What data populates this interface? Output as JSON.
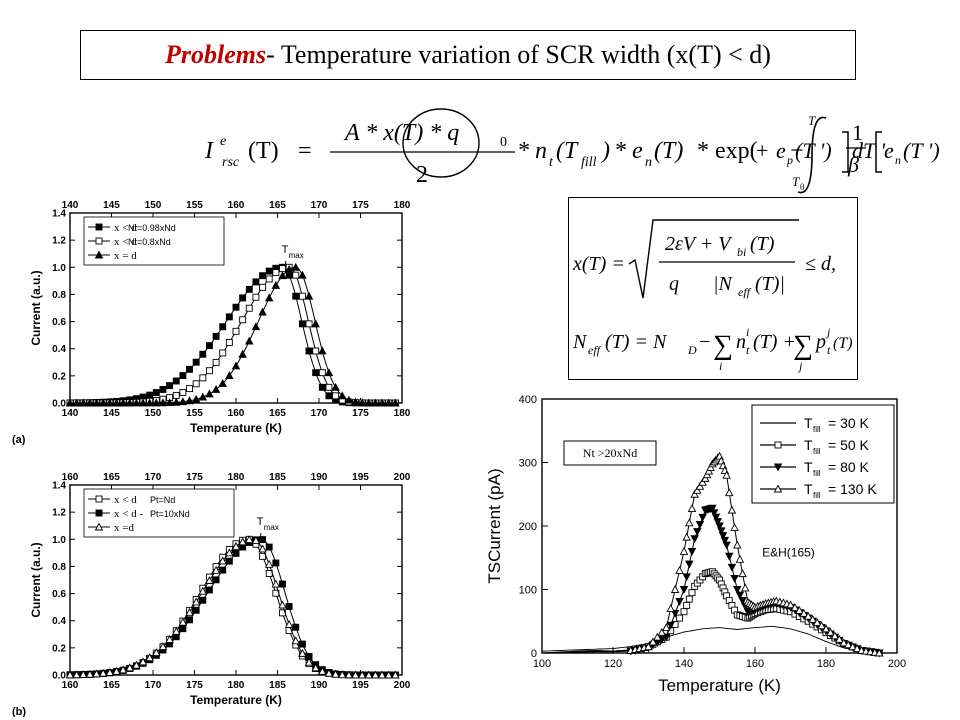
{
  "title": {
    "emphasis": "Problems",
    "rest": " - Temperature variation of SCR width (x(T) < d)"
  },
  "equation_main": {
    "lhs_I": "I",
    "lhs_sup": "e",
    "lhs_sub": "rsc",
    "lhs_arg": "(T)",
    "equals": "=",
    "numerator": "A * x(T) * q",
    "numerator_sub": "0",
    "denominator": "2",
    "mult1": "* n",
    "n_sub": "t",
    "n_arg_open": "(T",
    "n_arg_sub": "fill",
    "n_arg_close": ")",
    "mult2": "* e",
    "e_sub": "n",
    "e_arg": "(T)",
    "mult3": "* exp(",
    "minus": "−",
    "int_upper": "T",
    "int_lower": "T",
    "int_lower_sub": "0",
    "frac_num": "1",
    "frac_den": "β",
    "bracket_en": "e",
    "bracket_en_sub": "n",
    "bracket_en_arg": "(T ')",
    "plus": "+",
    "bracket_ep": "e",
    "bracket_ep_sub": "p",
    "bracket_ep_arg": "(T ')",
    "tail": "dT '"
  },
  "equation_box": {
    "line1_lhs": "x(T) =",
    "line1_num": "2εV + V",
    "line1_num_sub": "bi",
    "line1_num_arg": "(T)",
    "line1_den_left": "q",
    "line1_den_right": "|N",
    "line1_den_sub": "eff",
    "line1_den_arg": "(T)|",
    "line1_tail": "≤ d,",
    "line2_lhs": "N",
    "line2_lhs_sub": "eff",
    "line2_lhs_arg": "(T) = N",
    "line2_nd_sub": "D",
    "line2_minus": "−",
    "line2_sum1_term": "n",
    "line2_sum1_sup": "i",
    "line2_sum1_sub": "t",
    "line2_sum1_arg": "(T) +",
    "line2_sum_i": "i",
    "line2_sum2_term": "p",
    "line2_sum2_sup": "j",
    "line2_sum2_sub": "t",
    "line2_sum2_arg": "(T)",
    "line2_sum_j": "j"
  },
  "colors": {
    "title_emphasis": "#c00000",
    "line": "#000000"
  },
  "chart_data": [
    {
      "type": "line",
      "panel_label": "(a)",
      "title": "",
      "xlabel": "Temperature (K)",
      "ylabel": "Current (a.u.)",
      "xlim": [
        140,
        180
      ],
      "ylim": [
        0.0,
        1.4
      ],
      "xticks": [
        "140",
        "145",
        "150",
        "155",
        "160",
        "165",
        "170",
        "175",
        "180"
      ],
      "yticks": [
        "0.0",
        "0.2",
        "0.4",
        "0.6",
        "0.8",
        "1.0",
        "1.2",
        "1.4"
      ],
      "annotation": "T",
      "annotation_sub": "max",
      "legend_position": "top-left",
      "series": [
        {
          "name": "x < d",
          "note": "Nt=0.98xNd",
          "marker": "square-filled",
          "peak": 165.6,
          "wl": 9.0,
          "wr": 3.1
        },
        {
          "name": "x < d",
          "note": "Nt=0.8xNd",
          "marker": "square-open",
          "peak": 166.4,
          "wl": 7.6,
          "wr": 3.1
        },
        {
          "name": "x = d",
          "note": "",
          "marker": "triangle-filled",
          "peak": 167.2,
          "wl": 6.0,
          "wr": 3.1
        }
      ]
    },
    {
      "type": "line",
      "panel_label": "(b)",
      "title": "",
      "xlabel": "Temperature (K)",
      "ylabel": "Current (a.u.)",
      "xlim": [
        160,
        200
      ],
      "ylim": [
        0.0,
        1.4
      ],
      "xticks": [
        "160",
        "165",
        "170",
        "175",
        "180",
        "185",
        "190",
        "195",
        "200"
      ],
      "yticks": [
        "0.0",
        "0.2",
        "0.4",
        "0.6",
        "0.8",
        "1.0",
        "1.2",
        "1.4"
      ],
      "annotation": "T",
      "annotation_sub": "max",
      "legend_position": "top-left",
      "series": [
        {
          "name": "x < d",
          "note": "Pt=Nd",
          "marker": "square-open",
          "peak": 181.5,
          "wl": 7.8,
          "wr": 4.4
        },
        {
          "name": "x < d -",
          "note": "Pt=10xNd",
          "marker": "square-filled",
          "peak": 183.0,
          "wl": 8.6,
          "wr": 3.9
        },
        {
          "name": "x =d",
          "note": "",
          "marker": "triangle-open",
          "peak": 182.0,
          "wl": 8.2,
          "wr": 4.2
        }
      ]
    },
    {
      "type": "line",
      "title": "",
      "xlabel": "Temperature (K)",
      "ylabel": "TSCurrent (pA)",
      "xlim": [
        100,
        200
      ],
      "ylim": [
        0,
        400
      ],
      "xticks": [
        "100",
        "120",
        "140",
        "160",
        "180",
        "200"
      ],
      "yticks": [
        "0",
        "100",
        "200",
        "300",
        "400"
      ],
      "annotation": "E&H(165)",
      "inset_note": "Nt >20xNd",
      "legend_position": "top-right",
      "series": [
        {
          "name": "T",
          "name_sub": "fill",
          "name_value": "= 30 K",
          "marker": "none",
          "x": [
            100,
            105,
            110,
            115,
            120,
            125,
            130,
            135,
            140,
            145,
            150,
            155,
            160,
            165,
            170,
            175,
            180,
            185,
            190,
            195
          ],
          "y": [
            3,
            4,
            5,
            6,
            7,
            10,
            15,
            25,
            33,
            38,
            40,
            37,
            40,
            42,
            38,
            30,
            18,
            8,
            3,
            0
          ]
        },
        {
          "name": "T",
          "name_sub": "fill",
          "name_value": "= 50 K",
          "marker": "square-open",
          "x": [
            100,
            110,
            115,
            120,
            125,
            130,
            135,
            140,
            143,
            146,
            148,
            150,
            152,
            155,
            158,
            160,
            163,
            166,
            170,
            175,
            180,
            185,
            190,
            195
          ],
          "y": [
            0,
            3,
            4,
            3,
            5,
            10,
            25,
            65,
            105,
            125,
            128,
            115,
            90,
            60,
            55,
            62,
            68,
            70,
            65,
            50,
            32,
            15,
            4,
            0
          ]
        },
        {
          "name": "T",
          "name_sub": "fill",
          "name_value": "= 80 K",
          "marker": "triangle-down-filled",
          "x": [
            100,
            115,
            120,
            125,
            130,
            135,
            140,
            143,
            146,
            148,
            150,
            152,
            155,
            158,
            160,
            163,
            166,
            170,
            175,
            180,
            185,
            190,
            195
          ],
          "y": [
            0,
            2,
            2,
            3,
            8,
            25,
            100,
            180,
            225,
            228,
            200,
            170,
            100,
            65,
            68,
            75,
            78,
            72,
            55,
            35,
            15,
            4,
            0
          ]
        },
        {
          "name": "T",
          "name_sub": "fill",
          "name_value": "= 130 K",
          "marker": "triangle-open",
          "x": [
            100,
            115,
            120,
            125,
            130,
            135,
            140,
            143,
            146,
            148,
            150,
            152,
            155,
            158,
            160,
            163,
            166,
            170,
            175,
            180,
            185,
            190,
            195
          ],
          "y": [
            0,
            3,
            3,
            4,
            10,
            40,
            160,
            250,
            275,
            298,
            310,
            280,
            170,
            80,
            72,
            78,
            82,
            76,
            58,
            38,
            16,
            4,
            0
          ]
        }
      ]
    }
  ]
}
